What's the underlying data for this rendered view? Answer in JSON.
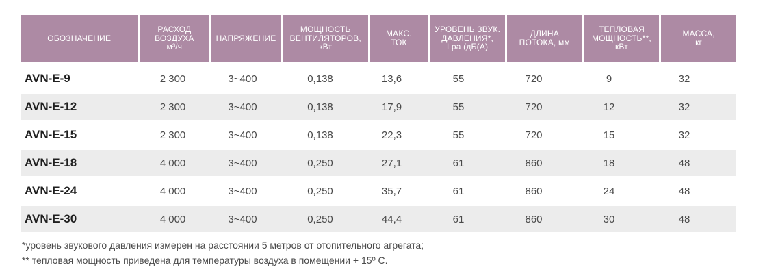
{
  "headers": [
    {
      "l1": "ОБОЗНАЧЕНИЕ",
      "l2": "",
      "l3": ""
    },
    {
      "l1": "РАСХОД",
      "l2": "ВОЗДУХА",
      "l3": "м³/ч"
    },
    {
      "l1": "НАПРЯЖЕНИЕ",
      "l2": "",
      "l3": ""
    },
    {
      "l1": "МОЩНОСТЬ",
      "l2": "ВЕНТИЛЯТОРОВ,",
      "l3": "кВт"
    },
    {
      "l1": "МАКС.",
      "l2": "ТОК",
      "l3": ""
    },
    {
      "l1": "УРОВЕНЬ ЗВУК.",
      "l2": "ДАВЛЕНИЯ*,",
      "l3": "Lpa (дБ(А)"
    },
    {
      "l1": "ДЛИНА",
      "l2": "ПОТОКА, мм",
      "l3": ""
    },
    {
      "l1": "ТЕПЛОВАЯ",
      "l2": "МОЩНОСТЬ**,",
      "l3": "кВт"
    },
    {
      "l1": "МАССА,",
      "l2": "кг",
      "l3": ""
    }
  ],
  "rows": [
    [
      "AVN-E-9",
      "2 300",
      "3~400",
      "0,138",
      "13,6",
      "55",
      "720",
      "9",
      "32"
    ],
    [
      "AVN-E-12",
      "2 300",
      "3~400",
      "0,138",
      "17,9",
      "55",
      "720",
      "12",
      "32"
    ],
    [
      "AVN-E-15",
      "2 300",
      "3~400",
      "0,138",
      "22,3",
      "55",
      "720",
      "15",
      "32"
    ],
    [
      "AVN-E-18",
      "4 000",
      "3~400",
      "0,250",
      "27,1",
      "61",
      "860",
      "18",
      "48"
    ],
    [
      "AVN-E-24",
      "4 000",
      "3~400",
      "0,250",
      "35,7",
      "61",
      "860",
      "24",
      "48"
    ],
    [
      "AVN-E-30",
      "4 000",
      "3~400",
      "0,250",
      "44,4",
      "61",
      "860",
      "30",
      "48"
    ]
  ],
  "notes": [
    "*уровень звукового давления измерен на расстоянии 5 метров от отопительного агрегата;",
    "** тепловая мощность приведена для температуры воздуха в помещении + 15º С."
  ],
  "colors": {
    "header_bg": "#ad8aa4",
    "header_text": "#ffffff",
    "alt_row_bg": "#ececec"
  }
}
